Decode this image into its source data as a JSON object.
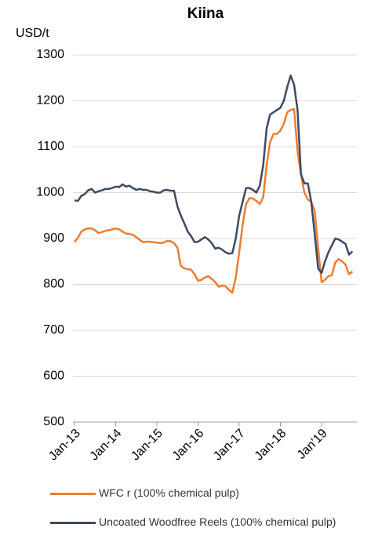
{
  "chart_data": {
    "type": "line",
    "title": "Kiina",
    "y_label": "USD/t",
    "categories": [
      "Jan-13",
      null,
      null,
      null,
      null,
      null,
      null,
      null,
      null,
      null,
      null,
      null,
      "Jan-14",
      null,
      null,
      null,
      null,
      null,
      null,
      null,
      null,
      null,
      null,
      null,
      "Jan-15",
      null,
      null,
      null,
      null,
      null,
      null,
      null,
      null,
      null,
      null,
      null,
      "Jan-16",
      null,
      null,
      null,
      null,
      null,
      null,
      null,
      null,
      null,
      null,
      null,
      "Jan-17",
      null,
      null,
      null,
      null,
      null,
      null,
      null,
      null,
      null,
      null,
      null,
      "Jan-18",
      null,
      null,
      null,
      null,
      null,
      null,
      null,
      null,
      null,
      null,
      null,
      "Jan'19",
      null,
      null,
      null,
      null,
      null,
      null,
      null,
      null,
      null
    ],
    "series": [
      {
        "name": "WFC r (100%  chemical pulp)",
        "color": "#ed7d31",
        "values": [
          892,
          902,
          915,
          920,
          922,
          922,
          918,
          912,
          914,
          917,
          918,
          920,
          922,
          920,
          915,
          911,
          910,
          908,
          903,
          897,
          892,
          893,
          893,
          892,
          891,
          890,
          891,
          895,
          894,
          890,
          880,
          840,
          835,
          833,
          832,
          822,
          808,
          810,
          815,
          818,
          812,
          805,
          795,
          797,
          796,
          788,
          782,
          815,
          870,
          930,
          975,
          988,
          987,
          982,
          975,
          990,
          1060,
          1110,
          1128,
          1128,
          1135,
          1150,
          1175,
          1180,
          1182,
          1090,
          1040,
          1000,
          985,
          980,
          960,
          880,
          805,
          810,
          818,
          820,
          848,
          855,
          850,
          843,
          822,
          828
        ]
      },
      {
        "name": "Uncoated Woodfree Reels (100% chemical pulp)",
        "color": "#3d4a63",
        "values": [
          983,
          982,
          993,
          997,
          1005,
          1008,
          1000,
          1003,
          1005,
          1008,
          1008,
          1010,
          1013,
          1012,
          1018,
          1013,
          1015,
          1010,
          1006,
          1008,
          1006,
          1006,
          1003,
          1002,
          1000,
          1000,
          1005,
          1006,
          1004,
          1004,
          970,
          950,
          933,
          915,
          905,
          892,
          893,
          898,
          903,
          898,
          890,
          878,
          880,
          876,
          870,
          867,
          868,
          900,
          950,
          980,
          1010,
          1010,
          1006,
          1000,
          1015,
          1060,
          1140,
          1170,
          1175,
          1180,
          1185,
          1200,
          1230,
          1255,
          1235,
          1180,
          1040,
          1020,
          1020,
          980,
          910,
          835,
          825,
          850,
          870,
          885,
          900,
          898,
          893,
          888,
          865,
          872
        ]
      }
    ],
    "ylim": [
      500,
      1300
    ],
    "yticks": [
      500,
      600,
      700,
      800,
      900,
      1000,
      1100,
      1200,
      1300
    ],
    "grid": true
  }
}
